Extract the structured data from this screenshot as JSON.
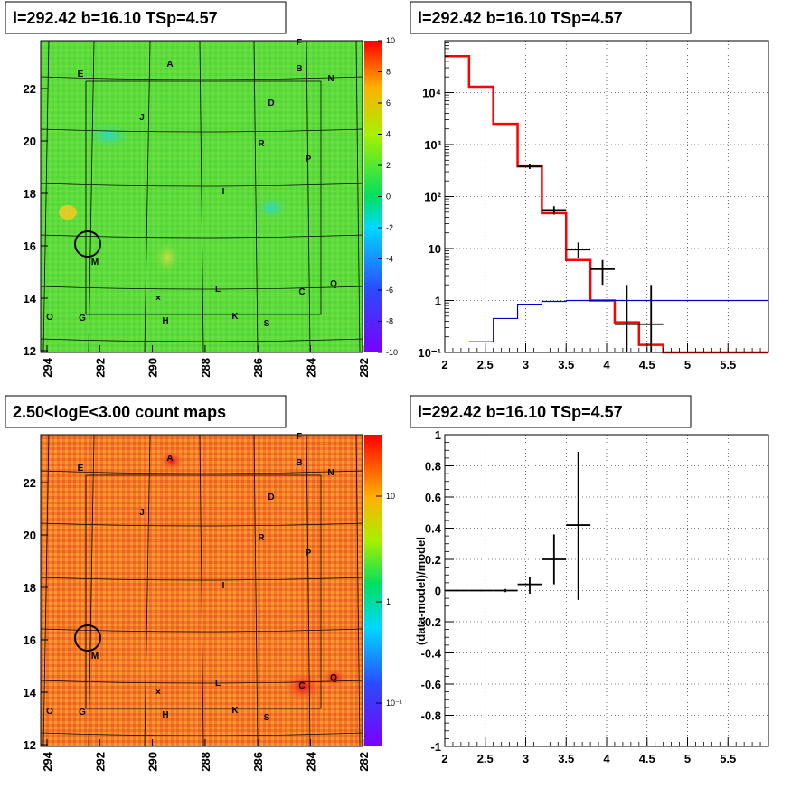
{
  "panels": {
    "tl": {
      "title": "l=292.42 b=16.10 TSp=4.57"
    },
    "tr": {
      "title": "l=292.42 b=16.10 TSp=4.57"
    },
    "bl": {
      "title": "2.50<logE<3.00 count maps"
    },
    "br": {
      "title": "l=292.42 b=16.10 TSp=4.57",
      "ylabel": "(data-model)/model"
    }
  },
  "map_axes": {
    "x_ticks": [
      "294",
      "292",
      "290",
      "288",
      "286",
      "284",
      "282"
    ],
    "y_ticks": [
      "12",
      "14",
      "16",
      "18",
      "20",
      "22"
    ],
    "source_labels": [
      "A",
      "B",
      "C",
      "D",
      "E",
      "F",
      "G",
      "H",
      "I",
      "J",
      "K",
      "L",
      "M",
      "N",
      "O",
      "P",
      "Q",
      "R",
      "S"
    ],
    "tl_colorbar_ticks": [
      "10",
      "8",
      "6",
      "4",
      "2",
      "0",
      "-2",
      "-4",
      "-6",
      "-8",
      "-10"
    ],
    "bl_colorbar_ticks": [
      "10",
      "1",
      "10⁻¹"
    ]
  },
  "colors": {
    "model_line": "#ff0000",
    "bkg_line": "#0000cc",
    "data": "#000000"
  },
  "chart_data": [
    {
      "type": "line",
      "panel": "top-right",
      "title": "l=292.42 b=16.10 TSp=4.57",
      "xlabel": "",
      "ylabel": "",
      "xlim": [
        2,
        6
      ],
      "ylim": [
        0.1,
        100000
      ],
      "yscale": "log",
      "grid": true,
      "x_ticks": [
        "2",
        "2.5",
        "3",
        "3.5",
        "4",
        "4.5",
        "5",
        "5.5"
      ],
      "y_ticks": [
        "10⁻¹",
        "1",
        "10",
        "10²",
        "10³",
        "10⁴"
      ],
      "series": [
        {
          "style": "step",
          "color": "#ff0000",
          "edges": [
            2,
            2.3,
            2.6,
            2.9,
            3.2,
            3.5,
            3.8,
            4.1,
            4.4,
            4.7,
            6
          ],
          "values": [
            50000,
            13000,
            2500,
            380,
            48,
            6,
            1,
            0.38,
            0.14,
            0.1
          ]
        },
        {
          "style": "step",
          "color": "#0000cc",
          "edges": [
            2.3,
            2.6,
            2.9,
            3.2,
            3.5,
            3.8,
            6
          ],
          "values": [
            0.16,
            0.45,
            0.85,
            0.96,
            1.0,
            1.0
          ]
        },
        {
          "style": "errorbars",
          "color": "#000000",
          "x": [
            3.05,
            3.35,
            3.65,
            3.95,
            4.25,
            4.55
          ],
          "xerr": 0.15,
          "y": [
            380,
            55,
            9.5,
            4,
            0.35,
            0.35
          ],
          "ylo": [
            340,
            45,
            6.5,
            2,
            0.1,
            0.1
          ],
          "yhi": [
            420,
            65,
            13,
            6,
            2,
            2
          ]
        }
      ]
    },
    {
      "type": "scatter",
      "panel": "bottom-right",
      "title": "l=292.42 b=16.10 TSp=4.57",
      "xlabel": "",
      "ylabel": "(data-model)/model",
      "xlim": [
        2,
        6
      ],
      "ylim": [
        -1,
        1
      ],
      "grid": true,
      "x_ticks": [
        "2",
        "2.5",
        "3",
        "3.5",
        "4",
        "4.5",
        "5",
        "5.5"
      ],
      "y_ticks": [
        "-1",
        "-0.8",
        "-0.6",
        "-0.4",
        "-0.2",
        "0",
        "0.2",
        "0.4",
        "0.6",
        "0.8",
        "1"
      ],
      "series": [
        {
          "style": "errorbars",
          "color": "#000000",
          "x": [
            2.15,
            2.45,
            2.75,
            3.05,
            3.35,
            3.65
          ],
          "xerr": 0.15,
          "y": [
            0,
            0,
            0,
            0.04,
            0.2,
            0.42
          ],
          "ylo": [
            -0.005,
            -0.005,
            -0.01,
            -0.02,
            0.04,
            -0.06
          ],
          "yhi": [
            0.005,
            0.005,
            0.01,
            0.09,
            0.36,
            0.89
          ]
        }
      ]
    }
  ]
}
